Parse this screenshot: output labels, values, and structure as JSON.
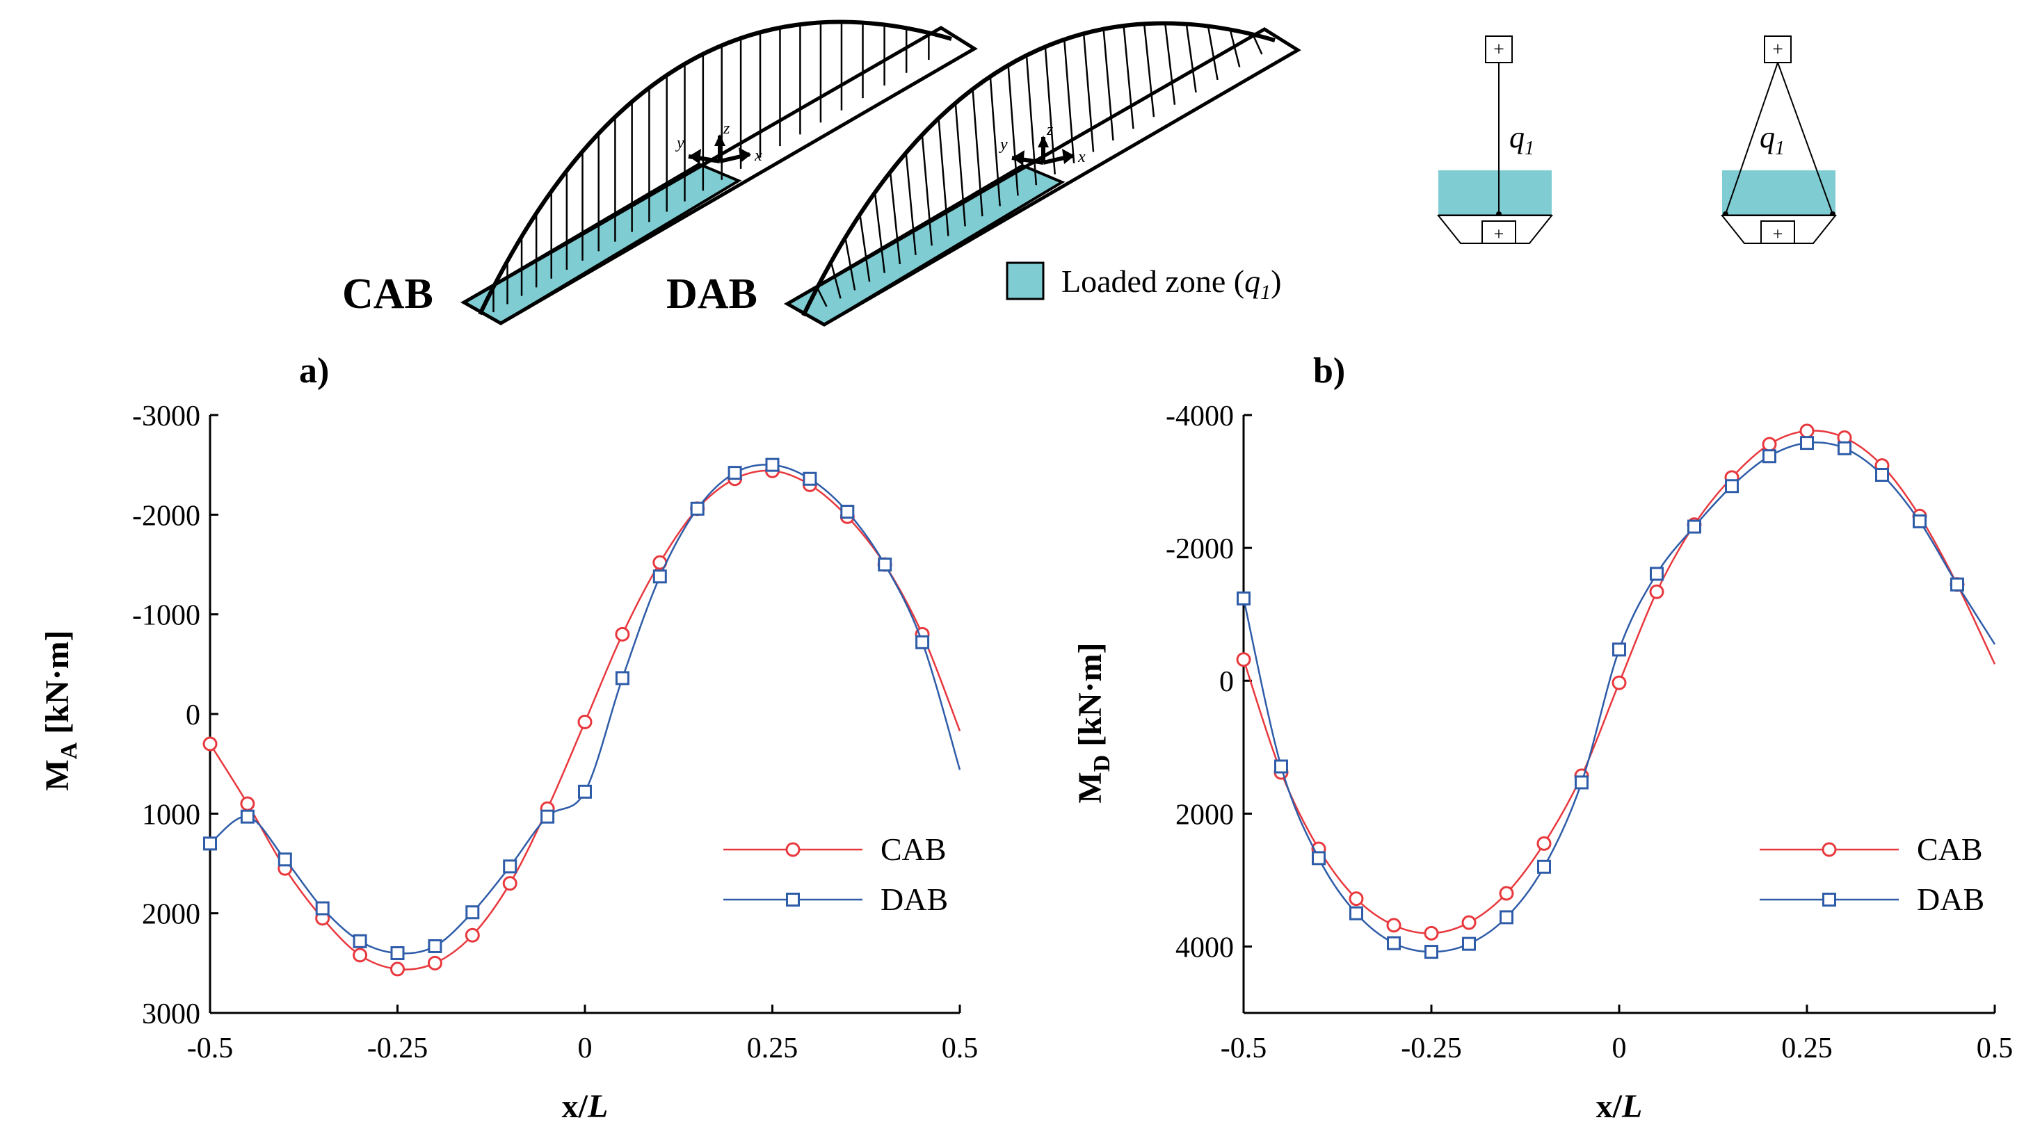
{
  "illustration": {
    "bridge_labels": [
      "CAB",
      "DAB"
    ],
    "axis_symbols": [
      "y",
      "z",
      "x"
    ],
    "load_symbol": "q",
    "load_subscript": "1",
    "legend_text": "Loaded zone (",
    "legend_close": ")",
    "loaded_color": "#7FCDD3",
    "plus_sign": "+"
  },
  "colors": {
    "cab": "#E8383D",
    "dab": "#2E5CA8"
  },
  "chart_data": [
    {
      "type": "line",
      "panel_label": "a)",
      "title": "",
      "xlabel_main": "x/",
      "xlabel_var": "L",
      "ylabel_main": "M",
      "ylabel_sub": "A",
      "ylabel_unit": "[kN·m]",
      "xlim": [
        -0.5,
        0.5
      ],
      "ylim": [
        3000,
        -3000
      ],
      "xticks": [
        -0.5,
        -0.25,
        0,
        0.25,
        0.5
      ],
      "xtick_labels": [
        "-0.5",
        "-0.25",
        "0",
        "0.25",
        "0.5"
      ],
      "yticks": [
        -3000,
        -2000,
        -1000,
        0,
        1000,
        2000,
        3000
      ],
      "ytick_labels": [
        "-3000",
        "-2000",
        "-1000",
        "0",
        "1000",
        "2000",
        "3000"
      ],
      "legend_position": "bottom-right",
      "series": [
        {
          "name": "CAB",
          "marker": "circle",
          "x": [
            -0.5,
            -0.45,
            -0.4,
            -0.35,
            -0.3,
            -0.25,
            -0.2,
            -0.15,
            -0.1,
            -0.05,
            0,
            0.05,
            0.1,
            0.15,
            0.2,
            0.25,
            0.3,
            0.35,
            0.4,
            0.45
          ],
          "values": [
            300,
            900,
            1550,
            2050,
            2420,
            2560,
            2500,
            2220,
            1700,
            950,
            80,
            -800,
            -1520,
            -2060,
            -2360,
            -2440,
            -2300,
            -1980,
            -1500,
            -800
          ],
          "curve_end": [
            0.5,
            170
          ]
        },
        {
          "name": "DAB",
          "marker": "square",
          "x": [
            -0.5,
            -0.45,
            -0.4,
            -0.35,
            -0.3,
            -0.25,
            -0.2,
            -0.15,
            -0.1,
            -0.05,
            0,
            0.05,
            0.1,
            0.15,
            0.2,
            0.25,
            0.3,
            0.35,
            0.4,
            0.45
          ],
          "values": [
            1300,
            1030,
            1460,
            1950,
            2280,
            2400,
            2330,
            1990,
            1530,
            1030,
            780,
            -360,
            -1380,
            -2060,
            -2420,
            -2500,
            -2360,
            -2030,
            -1500,
            -720
          ],
          "curve_end": [
            0.5,
            560
          ]
        }
      ]
    },
    {
      "type": "line",
      "panel_label": "b)",
      "title": "",
      "xlabel_main": "x/",
      "xlabel_var": "L",
      "ylabel_main": "M",
      "ylabel_sub": "D",
      "ylabel_unit": "[kN·m]",
      "xlim": [
        -0.5,
        0.5
      ],
      "ylim": [
        5000,
        -4000
      ],
      "xticks": [
        -0.5,
        -0.25,
        0,
        0.25,
        0.5
      ],
      "xtick_labels": [
        "-0.5",
        "-0.25",
        "0",
        "0.25",
        "0.5"
      ],
      "yticks": [
        -4000,
        -2000,
        0,
        2000,
        4000
      ],
      "ytick_labels": [
        "-4000",
        "-2000",
        "0",
        "2000",
        "4000"
      ],
      "legend_position": "bottom-right",
      "series": [
        {
          "name": "CAB",
          "marker": "circle",
          "x": [
            -0.5,
            -0.45,
            -0.4,
            -0.35,
            -0.3,
            -0.25,
            -0.2,
            -0.15,
            -0.1,
            -0.05,
            0,
            0.05,
            0.1,
            0.15,
            0.2,
            0.25,
            0.3,
            0.35,
            0.4,
            0.45
          ],
          "values": [
            -320,
            1380,
            2530,
            3280,
            3680,
            3800,
            3640,
            3200,
            2450,
            1430,
            30,
            -1340,
            -2350,
            -3060,
            -3560,
            -3760,
            -3660,
            -3240,
            -2480,
            -1450
          ],
          "curve_end": [
            0.5,
            -250
          ]
        },
        {
          "name": "DAB",
          "marker": "square",
          "x": [
            -0.5,
            -0.45,
            -0.4,
            -0.35,
            -0.3,
            -0.25,
            -0.2,
            -0.15,
            -0.1,
            -0.05,
            0,
            0.05,
            0.1,
            0.15,
            0.2,
            0.25,
            0.3,
            0.35,
            0.4,
            0.45
          ],
          "values": [
            -1240,
            1290,
            2670,
            3500,
            3950,
            4080,
            3960,
            3560,
            2800,
            1530,
            -470,
            -1610,
            -2320,
            -2930,
            -3380,
            -3580,
            -3500,
            -3100,
            -2400,
            -1450
          ],
          "curve_end": [
            0.5,
            -550
          ]
        }
      ]
    }
  ]
}
